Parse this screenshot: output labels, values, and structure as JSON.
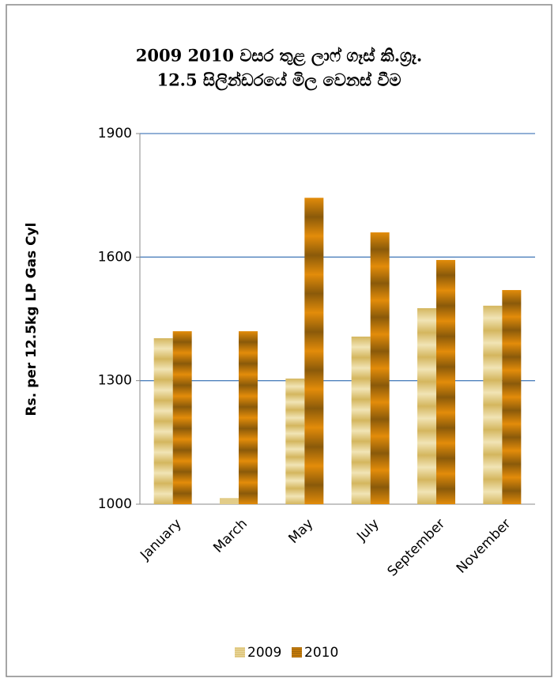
{
  "chart_data": {
    "type": "bar",
    "title": [
      "2009 2010 වසර තුළ ලාෆ් ගෑස් කි.ග්‍රෑ.",
      "12.5 සිලින්ඩරයේ මිල වෙනස් වීම"
    ],
    "y_label": "Rs. per 12.5kg LP Gas Cyl",
    "categories": [
      "January",
      "March",
      "May",
      "July",
      "September",
      "November"
    ],
    "series": [
      {
        "name": "2009",
        "color": "#d4b65e",
        "values": [
          1403,
          1015,
          1305,
          1407,
          1476,
          1482
        ]
      },
      {
        "name": "2010",
        "color": "#e38c0a",
        "values": [
          1420,
          1420,
          1744,
          1660,
          1593,
          1520
        ]
      }
    ],
    "ylim": [
      1000,
      1900
    ],
    "yticks": [
      1000,
      1300,
      1600,
      1900
    ],
    "grid": true,
    "legend": "bottom"
  }
}
